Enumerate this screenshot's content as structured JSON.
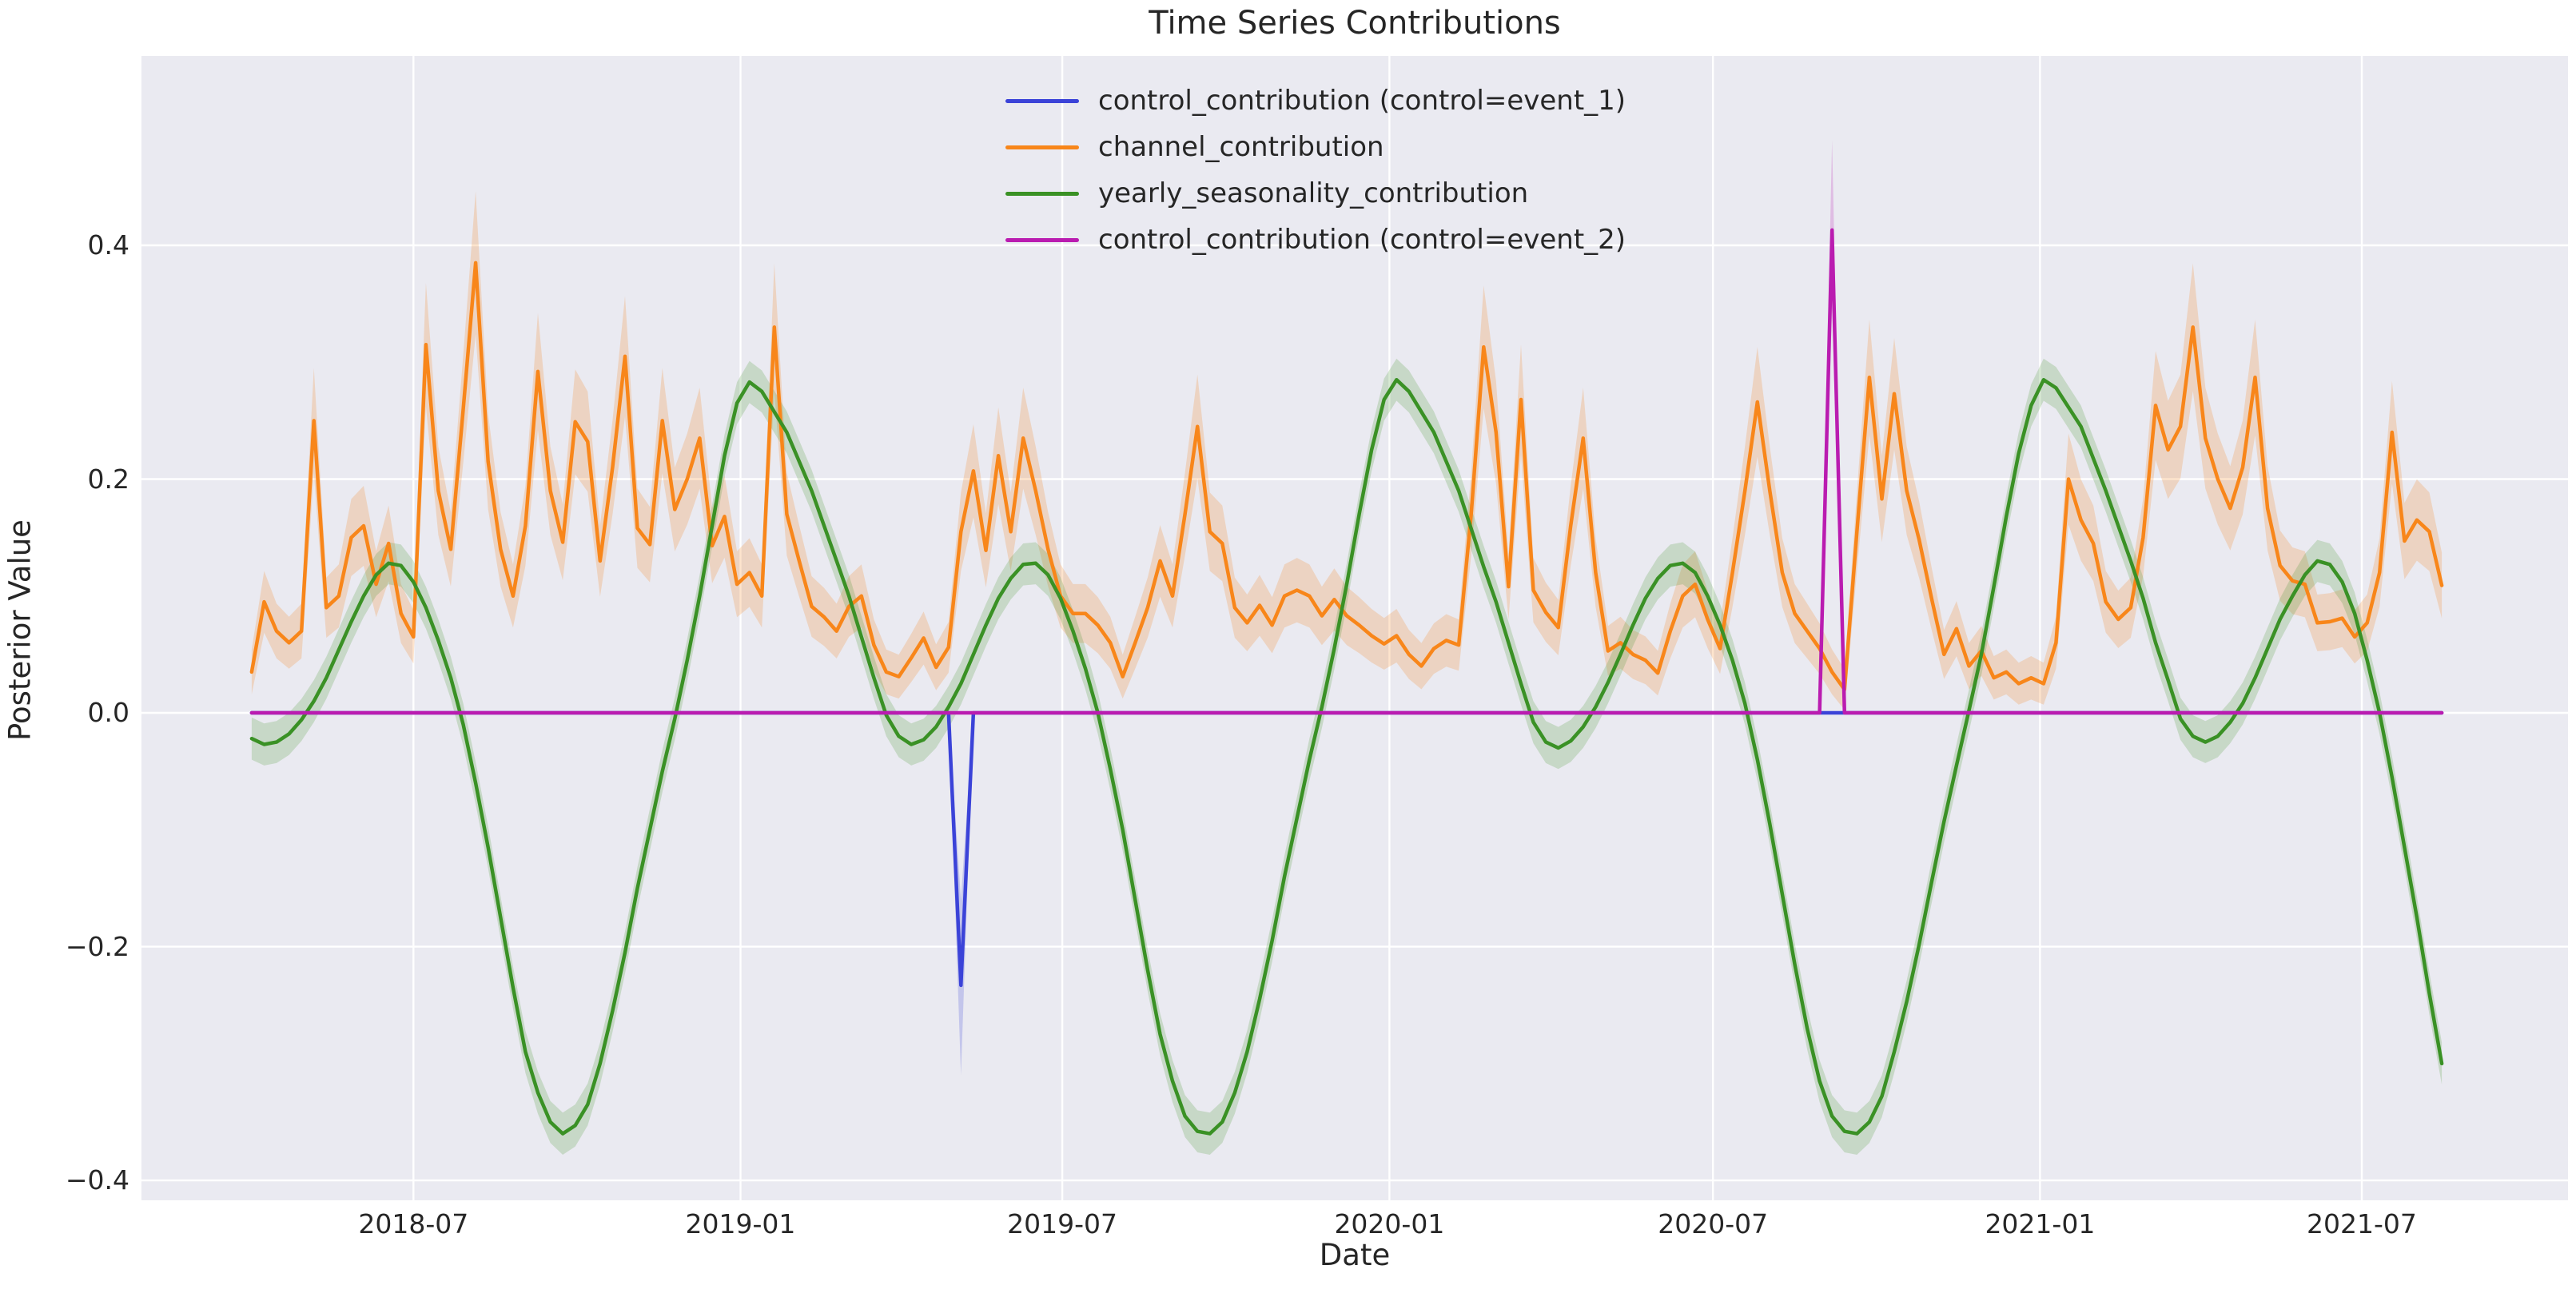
{
  "chart_data": {
    "type": "line",
    "title": "Time Series Contributions",
    "xlabel": "Date",
    "ylabel": "Posterior Value",
    "grid": true,
    "legend_position": "upper center-left, no frame",
    "background_color": "#eaeaf1",
    "gridline_color": "#ffffff",
    "text_color": "#262626",
    "x_domain": [
      "2018-01-29",
      "2021-10-25"
    ],
    "y_domain": [
      -0.417,
      0.562
    ],
    "x_ticks": [
      {
        "date": "2018-07-01",
        "label": "2018-07"
      },
      {
        "date": "2019-01-01",
        "label": "2019-01"
      },
      {
        "date": "2019-07-01",
        "label": "2019-07"
      },
      {
        "date": "2020-01-01",
        "label": "2020-01"
      },
      {
        "date": "2020-07-01",
        "label": "2020-07"
      },
      {
        "date": "2021-01-01",
        "label": "2021-01"
      },
      {
        "date": "2021-07-01",
        "label": "2021-07"
      }
    ],
    "y_ticks": [
      {
        "value": -0.4,
        "label": "−0.4"
      },
      {
        "value": -0.2,
        "label": "−0.2"
      },
      {
        "value": 0.0,
        "label": "0.0"
      },
      {
        "value": 0.2,
        "label": "0.2"
      },
      {
        "value": 0.4,
        "label": "0.4"
      }
    ],
    "series": [
      {
        "name": "control_event_1",
        "label": "control_contribution (control=event_1)",
        "color": "#3b43d8",
        "band_color": "rgba(59,67,216,0.22)",
        "points": [
          [
            "2018-04-01",
            0
          ],
          [
            "2019-04-28",
            0
          ],
          [
            "2019-05-05",
            -0.233
          ],
          [
            "2019-05-12",
            0
          ],
          [
            "2021-08-15",
            0
          ]
        ],
        "band": {
          "mode": "points",
          "points": [
            [
              "2019-04-28",
              0,
              0
            ],
            [
              "2019-05-05",
              -0.31,
              -0.16
            ],
            [
              "2019-05-12",
              0,
              0
            ]
          ]
        }
      },
      {
        "name": "channel",
        "label": "channel_contribution",
        "color": "#f8861a",
        "band_color": "rgba(248,134,26,0.22)",
        "weekly": {
          "start": "2018-04-01",
          "step_days": 7
        },
        "values": [
          0.035,
          0.095,
          0.07,
          0.06,
          0.07,
          0.25,
          0.09,
          0.1,
          0.15,
          0.16,
          0.11,
          0.145,
          0.085,
          0.065,
          0.315,
          0.19,
          0.14,
          0.26,
          0.385,
          0.215,
          0.14,
          0.1,
          0.16,
          0.292,
          0.19,
          0.146,
          0.249,
          0.232,
          0.13,
          0.21,
          0.305,
          0.158,
          0.144,
          0.25,
          0.174,
          0.2,
          0.235,
          0.143,
          0.168,
          0.11,
          0.12,
          0.1,
          0.33,
          0.17,
          0.13,
          0.091,
          0.082,
          0.07,
          0.091,
          0.1,
          0.058,
          0.035,
          0.031,
          0.047,
          0.064,
          0.039,
          0.056,
          0.155,
          0.207,
          0.139,
          0.22,
          0.155,
          0.235,
          0.19,
          0.14,
          0.1,
          0.085,
          0.085,
          0.075,
          0.06,
          0.031,
          0.06,
          0.09,
          0.13,
          0.1,
          0.17,
          0.245,
          0.155,
          0.145,
          0.09,
          0.077,
          0.092,
          0.075,
          0.1,
          0.105,
          0.1,
          0.083,
          0.097,
          0.083,
          0.075,
          0.066,
          0.059,
          0.066,
          0.05,
          0.04,
          0.055,
          0.062,
          0.058,
          0.17,
          0.313,
          0.24,
          0.108,
          0.268,
          0.105,
          0.086,
          0.073,
          0.16,
          0.235,
          0.12,
          0.053,
          0.06,
          0.05,
          0.045,
          0.034,
          0.07,
          0.1,
          0.11,
          0.08,
          0.055,
          0.12,
          0.19,
          0.266,
          0.19,
          0.12,
          0.085,
          0.07,
          0.055,
          0.035,
          0.02,
          0.155,
          0.287,
          0.183,
          0.273,
          0.19,
          0.148,
          0.098,
          0.05,
          0.072,
          0.04,
          0.053,
          0.03,
          0.035,
          0.025,
          0.03,
          0.025,
          0.06,
          0.2,
          0.165,
          0.145,
          0.095,
          0.08,
          0.09,
          0.15,
          0.263,
          0.225,
          0.245,
          0.33,
          0.235,
          0.2,
          0.175,
          0.21,
          0.287,
          0.175,
          0.126,
          0.113,
          0.11,
          0.077,
          0.078,
          0.081,
          0.065,
          0.077,
          0.12,
          0.24,
          0.147,
          0.165,
          0.155,
          0.109
        ],
        "band": {
          "mode": "halfwidth_rule",
          "base": 0.015,
          "factor": 0.12
        }
      },
      {
        "name": "yearly_seasonality",
        "label": "yearly_seasonality_contribution",
        "color": "#3a9125",
        "band_color": "rgba(58,145,37,0.20)",
        "points": [
          [
            "2018-04-01",
            -0.022
          ],
          [
            "2018-04-08",
            -0.027
          ],
          [
            "2018-04-15",
            -0.025
          ],
          [
            "2018-04-22",
            -0.018
          ],
          [
            "2018-04-29",
            -0.006
          ],
          [
            "2018-05-06",
            0.01
          ],
          [
            "2018-05-13",
            0.03
          ],
          [
            "2018-05-20",
            0.054
          ],
          [
            "2018-05-27",
            0.078
          ],
          [
            "2018-06-03",
            0.1
          ],
          [
            "2018-06-10",
            0.118
          ],
          [
            "2018-06-17",
            0.128
          ],
          [
            "2018-06-24",
            0.126
          ],
          [
            "2018-07-01",
            0.112
          ],
          [
            "2018-07-08",
            0.09
          ],
          [
            "2018-07-15",
            0.062
          ],
          [
            "2018-07-22",
            0.03
          ],
          [
            "2018-07-29",
            -0.01
          ],
          [
            "2018-08-05",
            -0.06
          ],
          [
            "2018-08-12",
            -0.115
          ],
          [
            "2018-08-19",
            -0.175
          ],
          [
            "2018-08-26",
            -0.235
          ],
          [
            "2018-09-02",
            -0.29
          ],
          [
            "2018-09-09",
            -0.325
          ],
          [
            "2018-09-16",
            -0.35
          ],
          [
            "2018-09-23",
            -0.36
          ],
          [
            "2018-09-30",
            -0.353
          ],
          [
            "2018-10-07",
            -0.335
          ],
          [
            "2018-10-14",
            -0.3
          ],
          [
            "2018-10-21",
            -0.255
          ],
          [
            "2018-10-28",
            -0.205
          ],
          [
            "2018-11-04",
            -0.15
          ],
          [
            "2018-11-11",
            -0.1
          ],
          [
            "2018-11-18",
            -0.05
          ],
          [
            "2018-11-25",
            -0.005
          ],
          [
            "2018-12-02",
            0.045
          ],
          [
            "2018-12-09",
            0.1
          ],
          [
            "2018-12-16",
            0.16
          ],
          [
            "2018-12-23",
            0.22
          ],
          [
            "2018-12-30",
            0.265
          ],
          [
            "2019-01-06",
            0.283
          ],
          [
            "2019-01-13",
            0.275
          ],
          [
            "2019-01-27",
            0.24
          ],
          [
            "2019-02-10",
            0.19
          ],
          [
            "2019-02-24",
            0.13
          ],
          [
            "2019-03-03",
            0.1
          ],
          [
            "2019-03-10",
            0.065
          ],
          [
            "2019-03-17",
            0.03
          ],
          [
            "2019-03-24",
            -0.002
          ],
          [
            "2019-03-31",
            -0.02
          ],
          [
            "2019-04-07",
            -0.027
          ],
          [
            "2019-04-14",
            -0.023
          ],
          [
            "2019-04-21",
            -0.012
          ],
          [
            "2019-04-28",
            0.005
          ],
          [
            "2019-05-05",
            0.025
          ],
          [
            "2019-05-12",
            0.05
          ],
          [
            "2019-05-19",
            0.075
          ],
          [
            "2019-05-26",
            0.098
          ],
          [
            "2019-06-02",
            0.115
          ],
          [
            "2019-06-09",
            0.127
          ],
          [
            "2019-06-16",
            0.128
          ],
          [
            "2019-06-23",
            0.118
          ],
          [
            "2019-06-30",
            0.098
          ],
          [
            "2019-07-07",
            0.07
          ],
          [
            "2019-07-14",
            0.038
          ],
          [
            "2019-07-21",
            0.0
          ],
          [
            "2019-07-28",
            -0.048
          ],
          [
            "2019-08-04",
            -0.1
          ],
          [
            "2019-08-11",
            -0.16
          ],
          [
            "2019-08-18",
            -0.22
          ],
          [
            "2019-08-25",
            -0.275
          ],
          [
            "2019-09-01",
            -0.315
          ],
          [
            "2019-09-08",
            -0.345
          ],
          [
            "2019-09-15",
            -0.358
          ],
          [
            "2019-09-22",
            -0.36
          ],
          [
            "2019-09-29",
            -0.35
          ],
          [
            "2019-10-06",
            -0.325
          ],
          [
            "2019-10-13",
            -0.29
          ],
          [
            "2019-10-20",
            -0.245
          ],
          [
            "2019-10-27",
            -0.195
          ],
          [
            "2019-11-03",
            -0.14
          ],
          [
            "2019-11-10",
            -0.09
          ],
          [
            "2019-11-17",
            -0.04
          ],
          [
            "2019-11-24",
            0.005
          ],
          [
            "2019-12-01",
            0.055
          ],
          [
            "2019-12-08",
            0.11
          ],
          [
            "2019-12-15",
            0.17
          ],
          [
            "2019-12-22",
            0.225
          ],
          [
            "2019-12-29",
            0.268
          ],
          [
            "2020-01-05",
            0.285
          ],
          [
            "2020-01-12",
            0.275
          ],
          [
            "2020-01-26",
            0.24
          ],
          [
            "2020-02-09",
            0.19
          ],
          [
            "2020-02-23",
            0.125
          ],
          [
            "2020-03-01",
            0.095
          ],
          [
            "2020-03-08",
            0.06
          ],
          [
            "2020-03-15",
            0.025
          ],
          [
            "2020-03-22",
            -0.008
          ],
          [
            "2020-03-29",
            -0.025
          ],
          [
            "2020-04-05",
            -0.03
          ],
          [
            "2020-04-12",
            -0.024
          ],
          [
            "2020-04-19",
            -0.012
          ],
          [
            "2020-04-26",
            0.005
          ],
          [
            "2020-05-03",
            0.026
          ],
          [
            "2020-05-10",
            0.05
          ],
          [
            "2020-05-17",
            0.075
          ],
          [
            "2020-05-24",
            0.098
          ],
          [
            "2020-05-31",
            0.115
          ],
          [
            "2020-06-07",
            0.126
          ],
          [
            "2020-06-14",
            0.128
          ],
          [
            "2020-06-21",
            0.12
          ],
          [
            "2020-06-28",
            0.1
          ],
          [
            "2020-07-05",
            0.075
          ],
          [
            "2020-07-12",
            0.045
          ],
          [
            "2020-07-19",
            0.008
          ],
          [
            "2020-07-26",
            -0.04
          ],
          [
            "2020-08-02",
            -0.095
          ],
          [
            "2020-08-09",
            -0.155
          ],
          [
            "2020-08-16",
            -0.215
          ],
          [
            "2020-08-23",
            -0.27
          ],
          [
            "2020-08-30",
            -0.315
          ],
          [
            "2020-09-06",
            -0.345
          ],
          [
            "2020-09-13",
            -0.358
          ],
          [
            "2020-09-20",
            -0.36
          ],
          [
            "2020-09-27",
            -0.35
          ],
          [
            "2020-10-04",
            -0.328
          ],
          [
            "2020-10-11",
            -0.29
          ],
          [
            "2020-10-18",
            -0.247
          ],
          [
            "2020-10-25",
            -0.198
          ],
          [
            "2020-11-01",
            -0.145
          ],
          [
            "2020-11-08",
            -0.093
          ],
          [
            "2020-11-15",
            -0.045
          ],
          [
            "2020-11-22",
            0.002
          ],
          [
            "2020-11-29",
            0.05
          ],
          [
            "2020-12-06",
            0.108
          ],
          [
            "2020-12-13",
            0.168
          ],
          [
            "2020-12-20",
            0.222
          ],
          [
            "2020-12-27",
            0.263
          ],
          [
            "2021-01-03",
            0.285
          ],
          [
            "2021-01-10",
            0.278
          ],
          [
            "2021-01-24",
            0.245
          ],
          [
            "2021-02-07",
            0.19
          ],
          [
            "2021-02-21",
            0.13
          ],
          [
            "2021-02-28",
            0.098
          ],
          [
            "2021-03-07",
            0.06
          ],
          [
            "2021-03-14",
            0.028
          ],
          [
            "2021-03-21",
            -0.005
          ],
          [
            "2021-03-28",
            -0.02
          ],
          [
            "2021-04-04",
            -0.025
          ],
          [
            "2021-04-11",
            -0.02
          ],
          [
            "2021-04-18",
            -0.008
          ],
          [
            "2021-04-25",
            0.008
          ],
          [
            "2021-05-02",
            0.03
          ],
          [
            "2021-05-09",
            0.055
          ],
          [
            "2021-05-16",
            0.08
          ],
          [
            "2021-05-23",
            0.1
          ],
          [
            "2021-05-30",
            0.118
          ],
          [
            "2021-06-06",
            0.13
          ],
          [
            "2021-06-13",
            0.127
          ],
          [
            "2021-06-20",
            0.112
          ],
          [
            "2021-06-27",
            0.085
          ],
          [
            "2021-07-04",
            0.045
          ],
          [
            "2021-07-11",
            0.0
          ],
          [
            "2021-07-18",
            -0.055
          ],
          [
            "2021-07-25",
            -0.115
          ],
          [
            "2021-08-01",
            -0.175
          ],
          [
            "2021-08-08",
            -0.24
          ],
          [
            "2021-08-15",
            -0.3
          ]
        ],
        "band": {
          "mode": "constant",
          "halfwidth": 0.018
        }
      },
      {
        "name": "control_event_2",
        "label": "control_contribution (control=event_2)",
        "color": "#ba1cb0",
        "band_color": "rgba(186,28,176,0.22)",
        "points": [
          [
            "2018-04-01",
            0
          ],
          [
            "2020-08-30",
            0
          ],
          [
            "2020-09-06",
            0.413
          ],
          [
            "2020-09-13",
            0
          ],
          [
            "2021-08-15",
            0
          ]
        ],
        "band": {
          "mode": "points",
          "points": [
            [
              "2020-08-30",
              0,
              0
            ],
            [
              "2020-09-06",
              0.345,
              0.49
            ],
            [
              "2020-09-13",
              0,
              0
            ]
          ]
        }
      }
    ]
  }
}
